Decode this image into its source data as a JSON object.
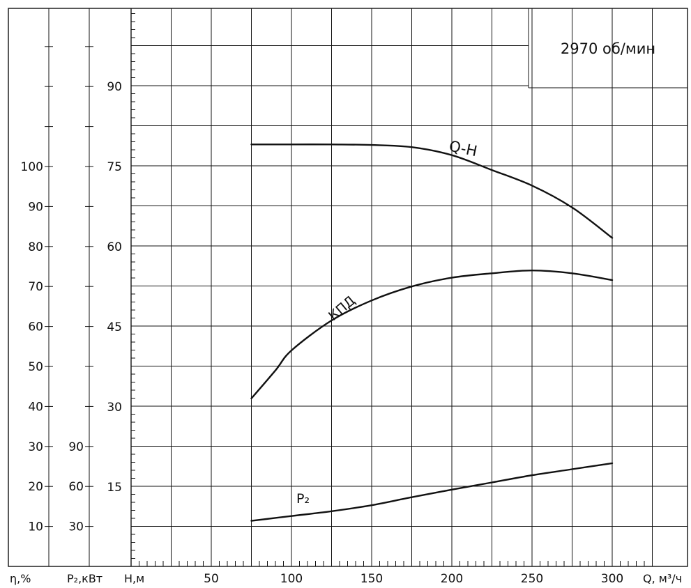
{
  "chart_data": {
    "type": "line",
    "speed_label": "2970 об/мин",
    "x_axis": {
      "unit_label": "Q, м³/ч",
      "range": [
        0,
        325
      ],
      "ticks": [
        50,
        100,
        150,
        200,
        250,
        300
      ],
      "tick_labels": [
        "50",
        "100",
        "150",
        "200",
        "250",
        "300"
      ]
    },
    "h_axis": {
      "unit_label": "H,м",
      "range": [
        0,
        102
      ],
      "ticks": [
        15,
        30,
        45,
        60,
        75,
        90
      ],
      "tick_labels": [
        "15",
        "30",
        "45",
        "60",
        "75",
        "90"
      ]
    },
    "p_axis": {
      "unit_label": "P₂,кВт",
      "ticks": [
        30,
        60,
        90
      ],
      "tick_labels": [
        "30",
        "60",
        "90"
      ]
    },
    "eta_axis": {
      "unit_label": "η,%",
      "ticks": [
        10,
        20,
        30,
        40,
        50,
        60,
        70,
        80,
        90,
        100
      ],
      "tick_labels": [
        "10",
        "20",
        "30",
        "40",
        "50",
        "60",
        "70",
        "80",
        "90",
        "100"
      ]
    },
    "series": [
      {
        "name": "Q-H",
        "axis": "h",
        "x": [
          75,
          100,
          125,
          150,
          175,
          200,
          225,
          250,
          275,
          300
        ],
        "y": [
          79,
          79,
          79,
          78.9,
          78.5,
          77,
          74.2,
          71.3,
          67.2,
          61.5
        ]
      },
      {
        "name": "КПД",
        "axis": "eta",
        "x": [
          75,
          90,
          100,
          125,
          150,
          175,
          200,
          225,
          250,
          275,
          300
        ],
        "y": [
          42,
          49,
          54,
          61.5,
          66.5,
          70,
          72.2,
          73.3,
          74,
          73.3,
          71.6
        ]
      },
      {
        "name": "P₂",
        "axis": "eta",
        "x": [
          75,
          100,
          125,
          150,
          175,
          200,
          225,
          250,
          275,
          300
        ],
        "y": [
          11.4,
          12.6,
          13.8,
          15.3,
          17.3,
          19.2,
          21,
          22.8,
          24.3,
          25.8
        ]
      }
    ]
  }
}
